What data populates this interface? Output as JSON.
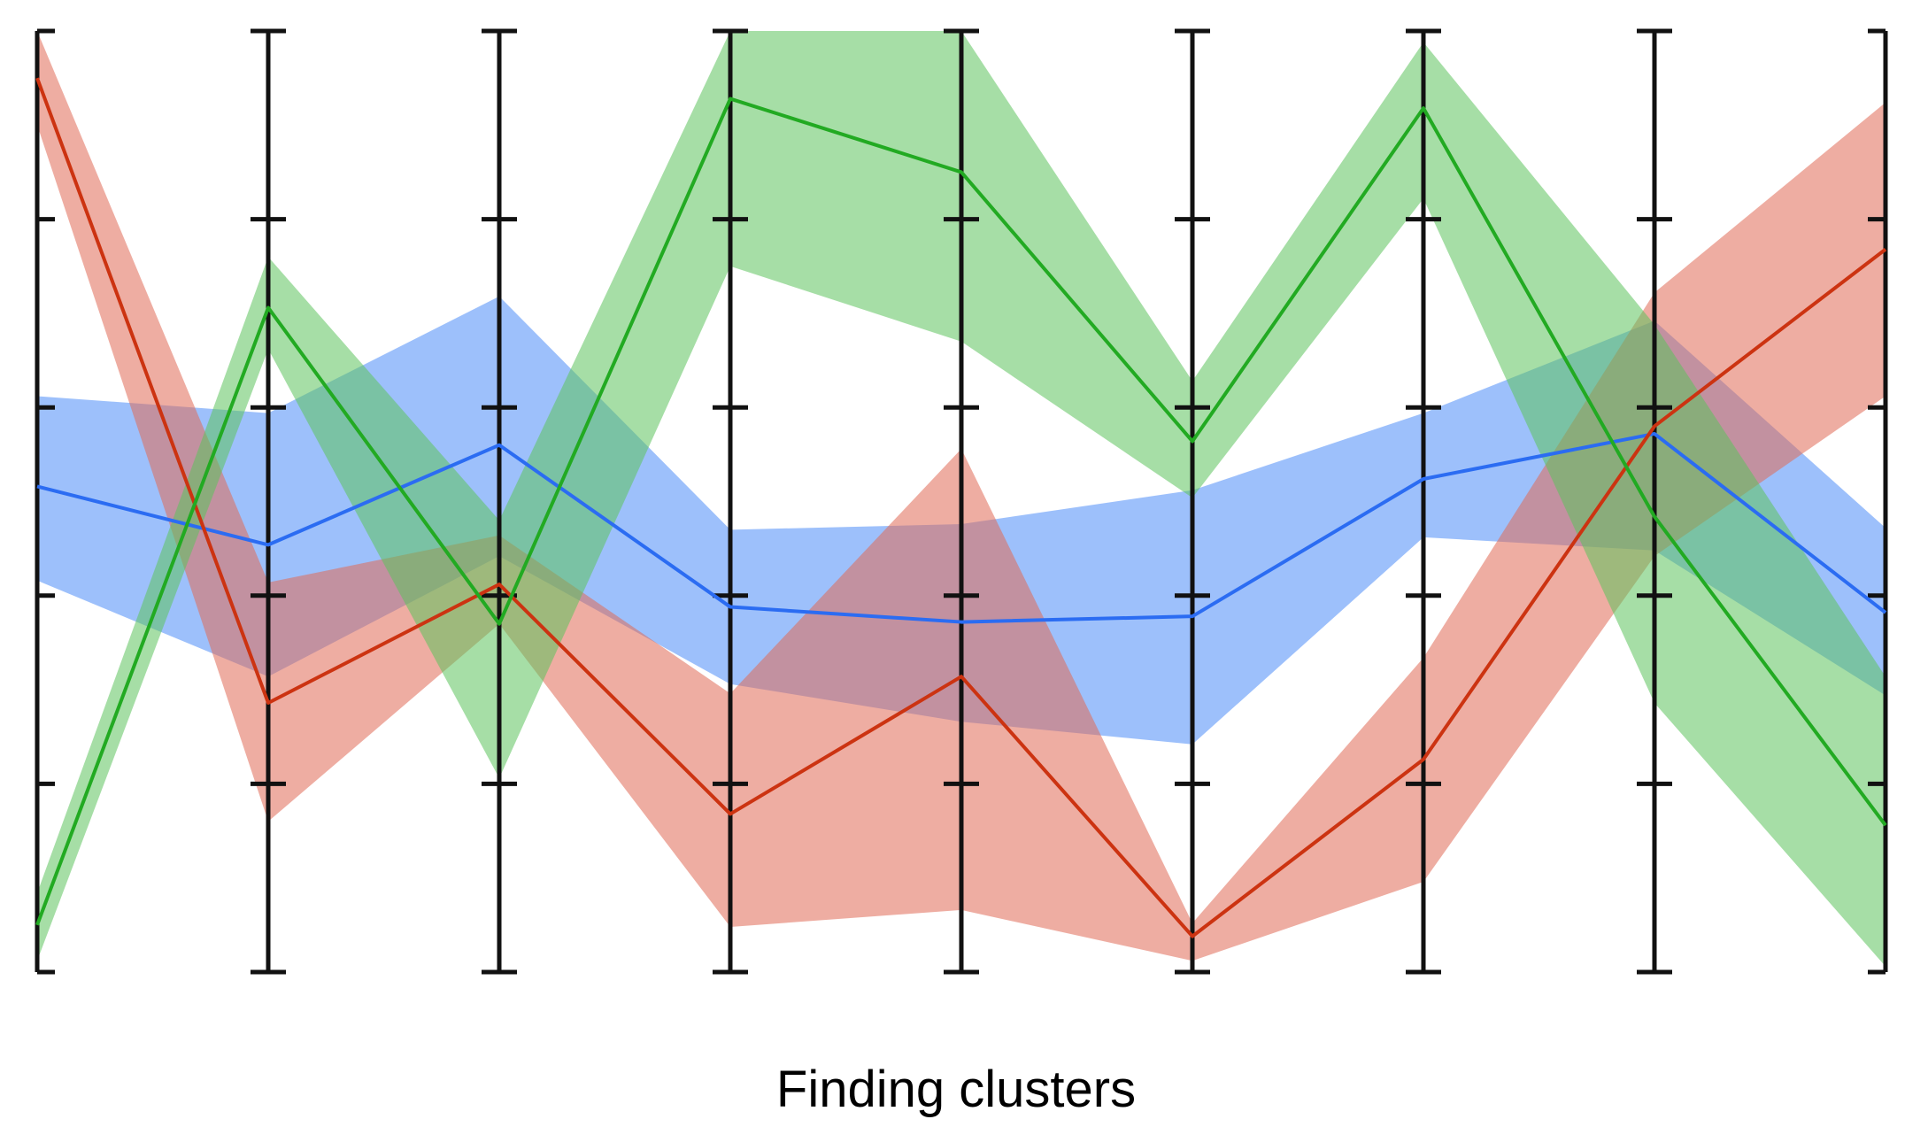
{
  "caption": "Finding clusters",
  "chart_data": {
    "type": "parallel-coordinates",
    "title": "",
    "axes_count": 9,
    "ylim": [
      0,
      5
    ],
    "ticks_per_axis": [
      0,
      1,
      2,
      3,
      4,
      5
    ],
    "grid": false,
    "legend": "none",
    "series": [
      {
        "color": "#2b6cf2",
        "band_color": "#4d8df7",
        "mean": [
          2.58,
          2.27,
          2.8,
          1.94,
          1.86,
          1.89,
          2.62,
          2.86,
          1.91
        ],
        "upper": [
          3.06,
          2.97,
          3.59,
          2.35,
          2.38,
          2.56,
          2.97,
          3.46,
          2.36
        ],
        "lower": [
          2.08,
          1.57,
          2.21,
          1.53,
          1.33,
          1.21,
          2.31,
          2.24,
          1.47
        ]
      },
      {
        "color": "#cc3311",
        "band_color": "#e06a55",
        "mean": [
          4.75,
          1.43,
          2.06,
          0.84,
          1.57,
          0.19,
          1.13,
          2.9,
          3.84
        ],
        "upper": [
          5.0,
          2.07,
          2.32,
          1.48,
          2.78,
          0.26,
          1.67,
          3.61,
          4.62
        ],
        "lower": [
          4.5,
          0.8,
          1.85,
          0.24,
          0.33,
          0.06,
          0.48,
          2.21,
          3.06
        ]
      },
      {
        "color": "#22aa22",
        "band_color": "#5cc35c",
        "mean": [
          0.25,
          3.53,
          1.85,
          4.64,
          4.25,
          2.82,
          4.59,
          2.42,
          0.78
        ],
        "upper": [
          0.42,
          3.8,
          2.4,
          5.0,
          5.0,
          3.14,
          4.94,
          3.44,
          1.57
        ],
        "lower": [
          0.06,
          3.31,
          1.03,
          3.75,
          3.35,
          2.52,
          4.11,
          1.43,
          0.03
        ]
      }
    ]
  }
}
